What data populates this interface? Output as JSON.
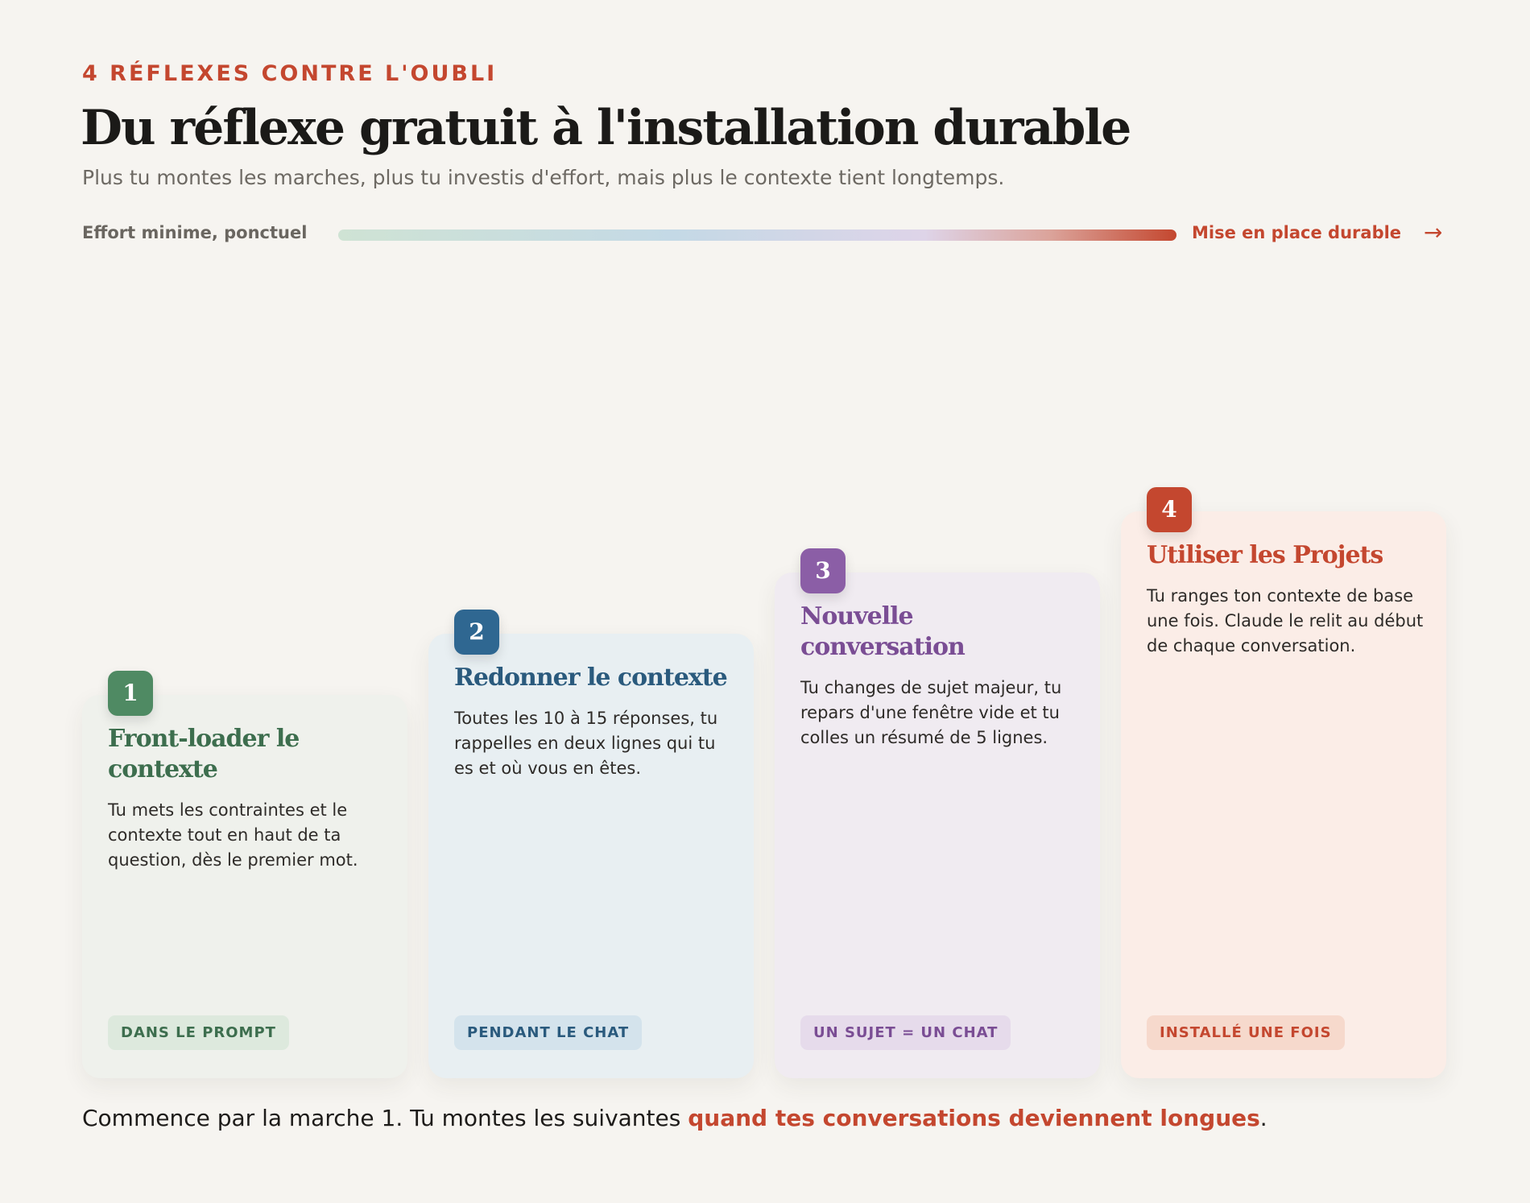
{
  "header": {
    "eyebrow": "4 RÉFLEXES CONTRE L'OUBLI",
    "title": "Du réflexe gratuit à l'installation durable",
    "subtitle": "Plus tu montes les marches, plus tu investis d'effort, mais plus le contexte tient longtemps."
  },
  "scale": {
    "left_label": "Effort minime, ponctuel",
    "right_label": "Mise en place durable",
    "arrow": "→"
  },
  "steps": [
    {
      "number": "1",
      "title": "Front-loader le contexte",
      "body": "Tu mets les contraintes et le contexte tout en haut de ta question, dès le premier mot.",
      "tag": "DANS LE PROMPT",
      "color": "#4f8a63"
    },
    {
      "number": "2",
      "title": "Redonner le contexte",
      "body": "Toutes les 10 à 15 réponses, tu rappelles en deux lignes qui tu es et où vous en êtes.",
      "tag": "PENDANT LE CHAT",
      "color": "#2f6791"
    },
    {
      "number": "3",
      "title": "Nouvelle conversation",
      "body": "Tu changes de sujet majeur, tu repars d'une fenêtre vide et tu colles un résumé de 5 lignes.",
      "tag": "UN SUJET = UN CHAT",
      "color": "#8b5ea6"
    },
    {
      "number": "4",
      "title": "Utiliser les Projets",
      "body": "Tu ranges ton contexte de base une fois. Claude le relit au début de chaque conversation.",
      "tag": "INSTALLÉ UNE FOIS",
      "color": "#c4472f"
    }
  ],
  "footer": {
    "text_before": "Commence par la marche 1. Tu montes les suivantes ",
    "highlight": "quand tes conversations deviennent longues",
    "text_after": "."
  }
}
